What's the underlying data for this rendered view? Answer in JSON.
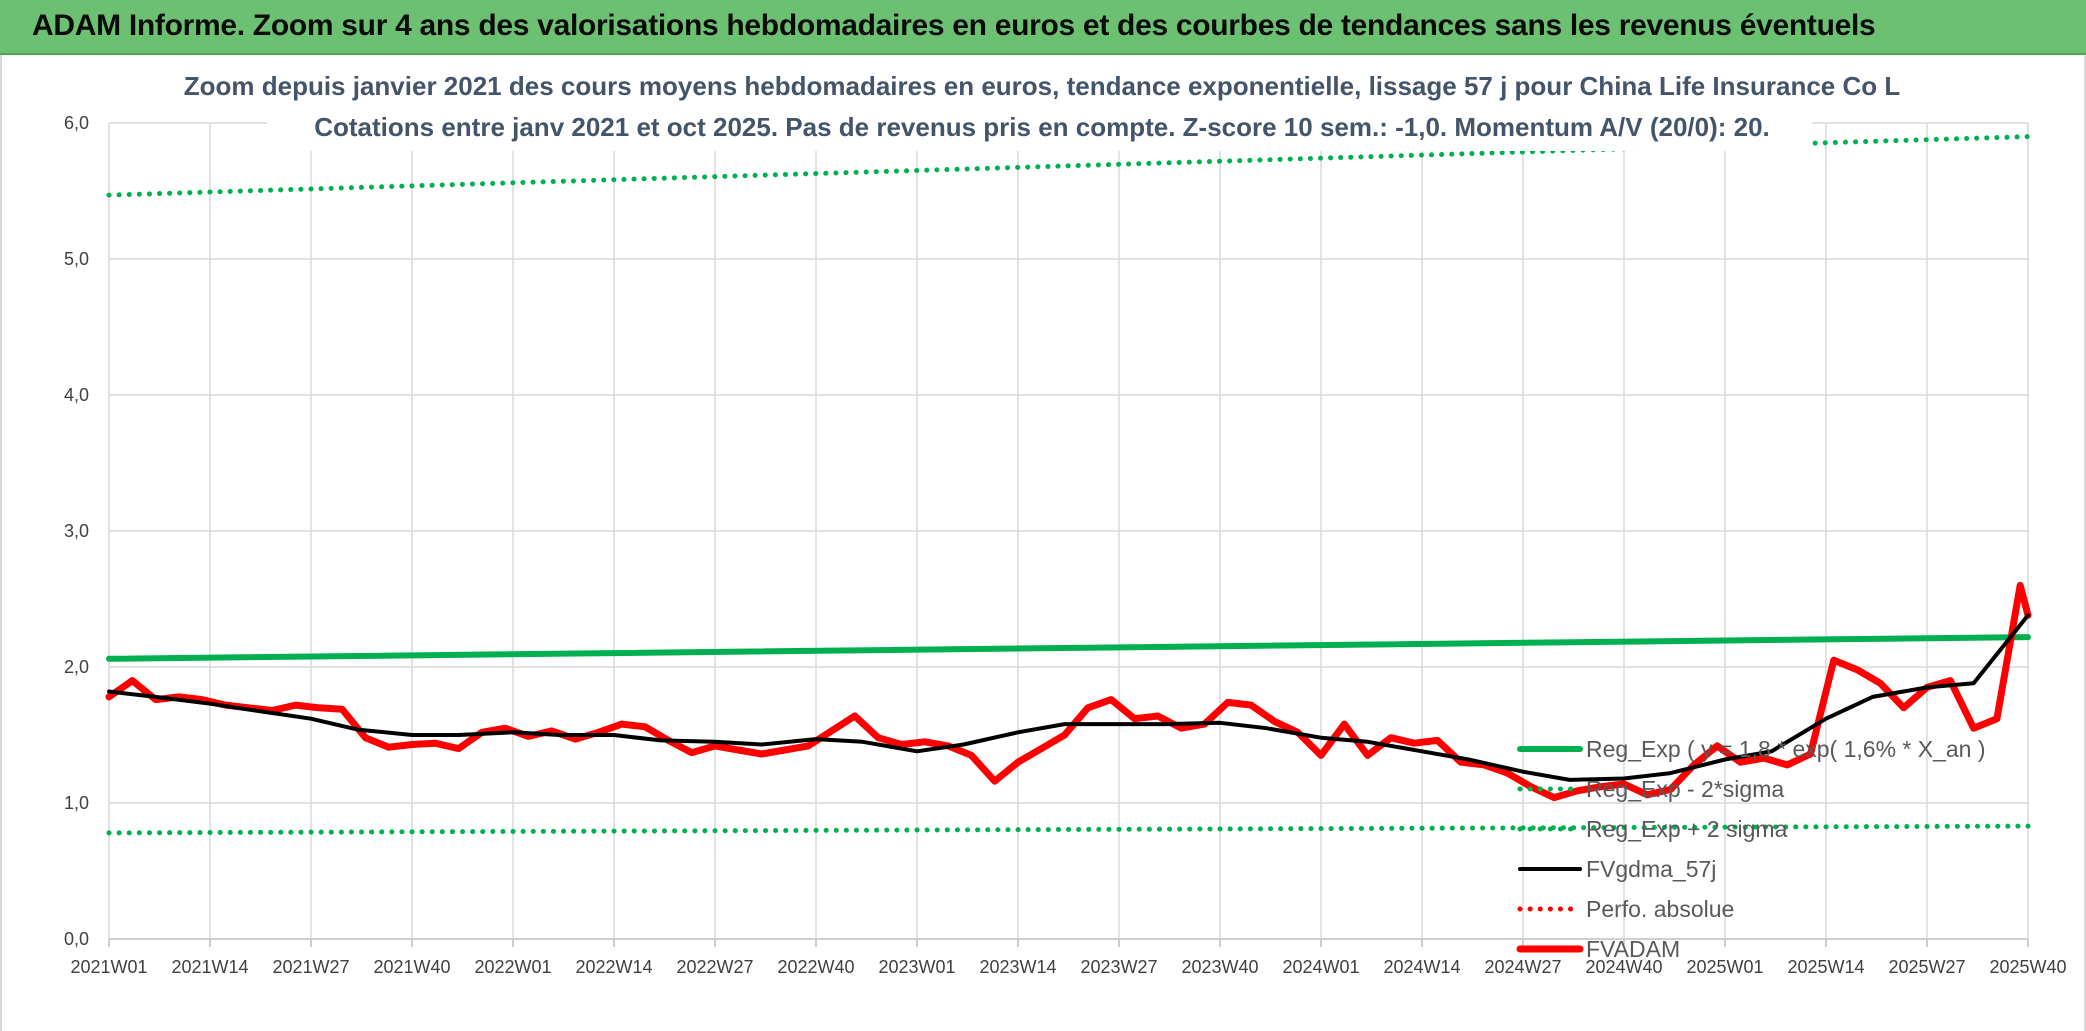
{
  "header": {
    "title": "ADAM Informe. Zoom sur 4 ans des valorisations hebdomadaires en euros et des courbes de tendances sans les revenus éventuels"
  },
  "chart_data": {
    "type": "line",
    "title": "Zoom depuis janvier 2021 des cours moyens hebdomadaires en euros, tendance exponentielle, lissage 57 j pour China Life Insurance Co L",
    "subtitle": "Cotations entre janv 2021 et oct 2025. Pas de revenus pris en compte. Z-score 10 sem.: -1,0. Momentum A/V (20/0): 20.",
    "ylim": [
      0,
      6
    ],
    "yticks": [
      "0,0",
      "1,0",
      "2,0",
      "3,0",
      "4,0",
      "5,0",
      "6,0"
    ],
    "xticks": [
      "2021W01",
      "2021W14",
      "2021W27",
      "2021W40",
      "2022W01",
      "2022W14",
      "2022W27",
      "2022W40",
      "2023W01",
      "2023W14",
      "2023W27",
      "2023W40",
      "2024W01",
      "2024W14",
      "2024W27",
      "2024W40",
      "2025W01",
      "2025W14",
      "2025W27",
      "2025W40"
    ],
    "grid": true,
    "legend_position": "bottom-right",
    "series": [
      {
        "name": "Reg_Exp ( y = 1,8 * exp( 1,6% * X_an )",
        "style": "solid-thick",
        "color": "#00b050",
        "x_index": [
          0,
          247
        ],
        "values": [
          2.06,
          2.22
        ]
      },
      {
        "name": "Reg_Exp - 2*sigma",
        "style": "dotted",
        "color": "#00b050",
        "x_index": [
          0,
          247
        ],
        "values": [
          0.78,
          0.83
        ]
      },
      {
        "name": "Reg_Exp + 2 sigma",
        "style": "dotted",
        "color": "#00b050",
        "x_index": [
          0,
          247
        ],
        "values": [
          5.47,
          5.9
        ]
      },
      {
        "name": "FVgdma_57j",
        "style": "solid",
        "color": "#000000",
        "x_index": [
          0,
          6,
          13,
          20,
          26,
          32,
          39,
          45,
          52,
          58,
          65,
          71,
          78,
          84,
          91,
          97,
          104,
          110,
          117,
          123,
          130,
          136,
          143,
          149,
          156,
          162,
          169,
          175,
          182,
          188,
          195,
          201,
          208,
          214,
          221,
          227,
          234,
          240,
          247
        ],
        "values": [
          1.82,
          1.78,
          1.73,
          1.67,
          1.62,
          1.54,
          1.5,
          1.5,
          1.52,
          1.5,
          1.5,
          1.46,
          1.45,
          1.43,
          1.47,
          1.45,
          1.38,
          1.43,
          1.52,
          1.58,
          1.58,
          1.58,
          1.59,
          1.55,
          1.48,
          1.45,
          1.38,
          1.32,
          1.23,
          1.17,
          1.18,
          1.22,
          1.32,
          1.38,
          1.62,
          1.78,
          1.85,
          1.88,
          2.38
        ]
      },
      {
        "name": "Perfo. absolue",
        "style": "dotted",
        "color": "#ff0000",
        "x_index": [],
        "values": []
      },
      {
        "name": "FVADAM",
        "style": "solid-thick",
        "color": "#ff0000",
        "x_index": [
          0,
          3,
          6,
          9,
          12,
          15,
          18,
          21,
          24,
          27,
          30,
          33,
          36,
          39,
          42,
          45,
          48,
          51,
          54,
          57,
          60,
          63,
          66,
          69,
          72,
          75,
          78,
          81,
          84,
          87,
          90,
          93,
          96,
          99,
          102,
          105,
          108,
          111,
          114,
          117,
          120,
          123,
          126,
          129,
          132,
          135,
          138,
          141,
          144,
          147,
          150,
          153,
          156,
          159,
          162,
          165,
          168,
          171,
          174,
          177,
          180,
          183,
          186,
          189,
          192,
          195,
          198,
          201,
          204,
          207,
          210,
          213,
          216,
          219,
          222,
          225,
          228,
          231,
          234,
          237,
          240,
          243,
          246,
          247
        ],
        "values": [
          1.78,
          1.9,
          1.76,
          1.78,
          1.76,
          1.72,
          1.7,
          1.68,
          1.72,
          1.7,
          1.69,
          1.48,
          1.41,
          1.43,
          1.44,
          1.4,
          1.52,
          1.55,
          1.49,
          1.53,
          1.47,
          1.52,
          1.58,
          1.56,
          1.46,
          1.37,
          1.42,
          1.39,
          1.36,
          1.39,
          1.42,
          1.53,
          1.64,
          1.48,
          1.43,
          1.45,
          1.42,
          1.35,
          1.16,
          1.3,
          1.4,
          1.5,
          1.7,
          1.76,
          1.62,
          1.64,
          1.55,
          1.58,
          1.74,
          1.72,
          1.6,
          1.52,
          1.35,
          1.58,
          1.35,
          1.48,
          1.44,
          1.46,
          1.3,
          1.28,
          1.22,
          1.12,
          1.04,
          1.09,
          1.12,
          1.14,
          1.06,
          1.1,
          1.28,
          1.42,
          1.3,
          1.33,
          1.28,
          1.36,
          2.05,
          1.98,
          1.88,
          1.7,
          1.85,
          1.9,
          1.55,
          1.62,
          2.6,
          2.38
        ]
      }
    ]
  }
}
